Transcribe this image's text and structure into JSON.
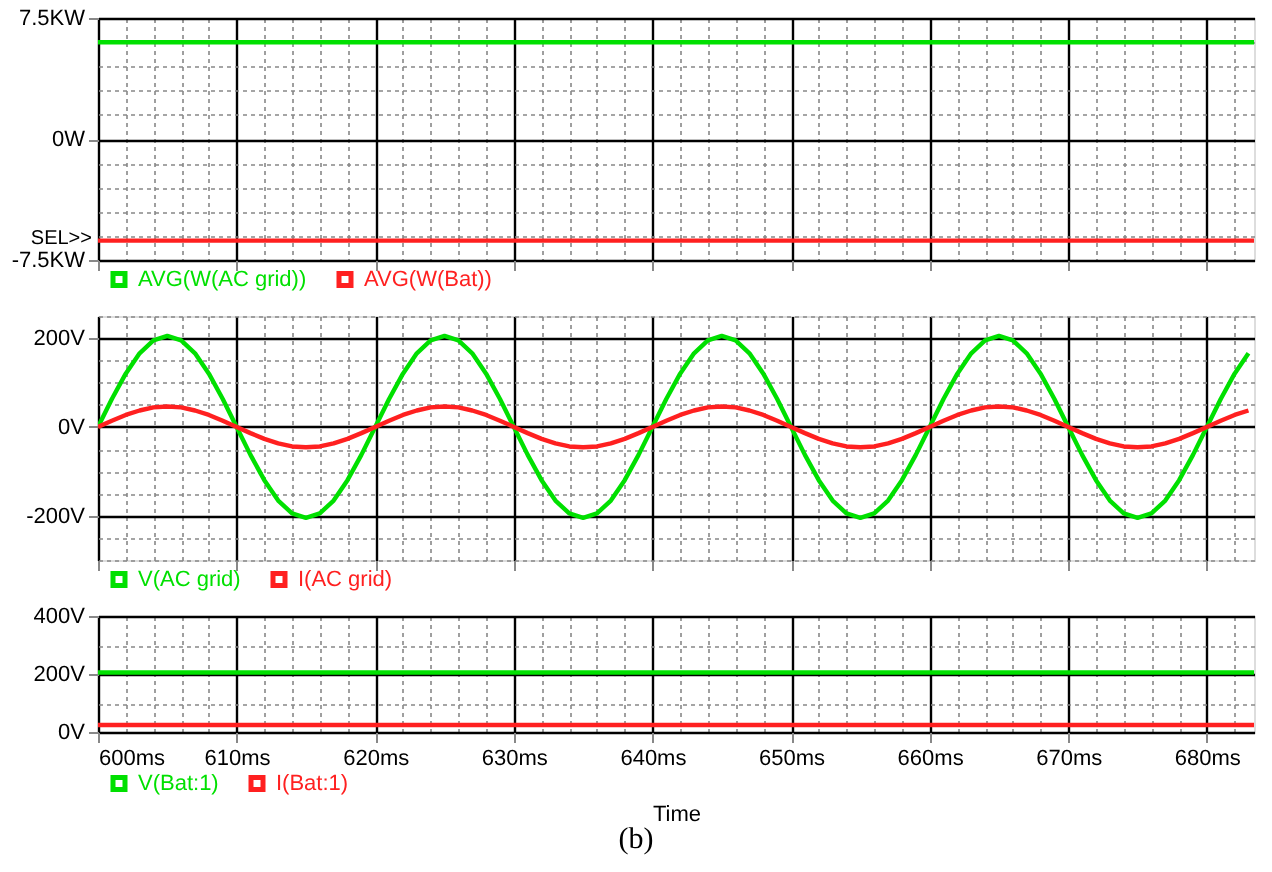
{
  "chart_data": [
    {
      "type": "line",
      "x": [
        600,
        683.4
      ],
      "xlim": [
        600,
        683.4
      ],
      "xticks": [
        600,
        {
          "value": 602,
          "label": null
        },
        {
          "value": 604,
          "label": null
        },
        {
          "value": 606,
          "label": null
        },
        {
          "value": 608,
          "label": null
        },
        610,
        {
          "value": 612,
          "label": null
        },
        {
          "value": 614,
          "label": null
        },
        {
          "value": 616,
          "label": null
        },
        {
          "value": 618,
          "label": null
        },
        620,
        {
          "value": 622,
          "label": null
        },
        {
          "value": 624,
          "label": null
        },
        {
          "value": 626,
          "label": null
        },
        {
          "value": 628,
          "label": null
        },
        630,
        {
          "value": 632,
          "label": null
        },
        {
          "value": 634,
          "label": null
        },
        {
          "value": 636,
          "label": null
        },
        {
          "value": 638,
          "label": null
        },
        640,
        {
          "value": 642,
          "label": null
        },
        {
          "value": 644,
          "label": null
        },
        {
          "value": 646,
          "label": null
        },
        {
          "value": 648,
          "label": null
        },
        650,
        {
          "value": 652,
          "label": null
        },
        {
          "value": 654,
          "label": null
        },
        {
          "value": 656,
          "label": null
        },
        {
          "value": 658,
          "label": null
        },
        660,
        {
          "value": 662,
          "label": null
        },
        {
          "value": 664,
          "label": null
        },
        {
          "value": 666,
          "label": null
        },
        {
          "value": 668,
          "label": null
        },
        670,
        {
          "value": 672,
          "label": null
        },
        {
          "value": 674,
          "label": null
        },
        {
          "value": 676,
          "label": null
        },
        {
          "value": 678,
          "label": null
        },
        680,
        {
          "value": 682,
          "label": null
        }
      ],
      "ylim": [
        -7.5,
        7.5
      ],
      "yticks": [
        {
          "value": -7.5,
          "label": "-7.5KW"
        },
        {
          "value": -6,
          "label": null
        },
        {
          "value": -4.5,
          "label": null
        },
        {
          "value": -3,
          "label": null
        },
        {
          "value": -1.5,
          "label": null
        },
        {
          "value": 0,
          "label": "0W"
        },
        {
          "value": 1.5,
          "label": null
        },
        {
          "value": 3,
          "label": null
        },
        {
          "value": 4.5,
          "label": null
        },
        {
          "value": 6,
          "label": null
        },
        {
          "value": 7.5,
          "label": "7.5KW"
        }
      ],
      "series": [
        {
          "name": "AVG(W(AC grid))",
          "color": "#00e000",
          "values": [
            6.0,
            6.0
          ]
        },
        {
          "name": "AVG(W(Bat))",
          "color": "#ff2020",
          "values": [
            -6.3,
            -6.3
          ]
        }
      ],
      "grid": true,
      "legend": "bottom",
      "tick_labels": "y",
      "annotations": [
        "SEL>>"
      ]
    },
    {
      "type": "line",
      "x": [
        600,
        601,
        602,
        603,
        604,
        605,
        606,
        607,
        608,
        609,
        610,
        611,
        612,
        613,
        614,
        615,
        616,
        617,
        618,
        619,
        620,
        621,
        622,
        623,
        624,
        625,
        626,
        627,
        628,
        629,
        630,
        631,
        632,
        633,
        634,
        635,
        636,
        637,
        638,
        639,
        640,
        641,
        642,
        643,
        644,
        645,
        646,
        647,
        648,
        649,
        650,
        651,
        652,
        653,
        654,
        655,
        656,
        657,
        658,
        659,
        660,
        661,
        662,
        663,
        664,
        665,
        666,
        667,
        668,
        669,
        670,
        671,
        672,
        673,
        674,
        675,
        676,
        677,
        678,
        679,
        680,
        681,
        682,
        683
      ],
      "xlim": [
        600,
        683.4
      ],
      "xticks": [
        600,
        {
          "value": 602,
          "label": null
        },
        {
          "value": 604,
          "label": null
        },
        {
          "value": 606,
          "label": null
        },
        {
          "value": 608,
          "label": null
        },
        610,
        {
          "value": 612,
          "label": null
        },
        {
          "value": 614,
          "label": null
        },
        {
          "value": 616,
          "label": null
        },
        {
          "value": 618,
          "label": null
        },
        620,
        {
          "value": 622,
          "label": null
        },
        {
          "value": 624,
          "label": null
        },
        {
          "value": 626,
          "label": null
        },
        {
          "value": 628,
          "label": null
        },
        630,
        {
          "value": 632,
          "label": null
        },
        {
          "value": 634,
          "label": null
        },
        {
          "value": 636,
          "label": null
        },
        {
          "value": 638,
          "label": null
        },
        640,
        {
          "value": 642,
          "label": null
        },
        {
          "value": 644,
          "label": null
        },
        {
          "value": 646,
          "label": null
        },
        {
          "value": 648,
          "label": null
        },
        650,
        {
          "value": 652,
          "label": null
        },
        {
          "value": 654,
          "label": null
        },
        {
          "value": 656,
          "label": null
        },
        {
          "value": 658,
          "label": null
        },
        660,
        {
          "value": 662,
          "label": null
        },
        {
          "value": 664,
          "label": null
        },
        {
          "value": 666,
          "label": null
        },
        {
          "value": 668,
          "label": null
        },
        670,
        {
          "value": 672,
          "label": null
        },
        {
          "value": 674,
          "label": null
        },
        {
          "value": 676,
          "label": null
        },
        {
          "value": 678,
          "label": null
        },
        680,
        {
          "value": 682,
          "label": null
        }
      ],
      "ylim": [
        -300,
        250
      ],
      "yticks": [
        {
          "value": -300,
          "label": null
        },
        {
          "value": -250,
          "label": null
        },
        {
          "value": -200,
          "label": "-200V"
        },
        {
          "value": -150,
          "label": null
        },
        {
          "value": -100,
          "label": null
        },
        {
          "value": -50,
          "label": null
        },
        {
          "value": 0,
          "label": "0V"
        },
        {
          "value": 50,
          "label": null
        },
        {
          "value": 100,
          "label": null
        },
        {
          "value": 150,
          "label": null
        },
        {
          "value": 200,
          "label": "200V"
        },
        {
          "value": 250,
          "label": null
        }
      ],
      "series": [
        {
          "name": "V(AC grid)",
          "color": "#00e000",
          "values": [
            0,
            63,
            120,
            166,
            195,
            205,
            195,
            166,
            120,
            63,
            0,
            -63,
            -120,
            -166,
            -195,
            -205,
            -195,
            -166,
            -120,
            -63,
            0,
            63,
            120,
            166,
            195,
            205,
            195,
            166,
            120,
            63,
            0,
            -63,
            -120,
            -166,
            -195,
            -205,
            -195,
            -166,
            -120,
            -63,
            0,
            63,
            120,
            166,
            195,
            205,
            195,
            166,
            120,
            63,
            0,
            -63,
            -120,
            -166,
            -195,
            -205,
            -195,
            -166,
            -120,
            -63,
            0,
            63,
            120,
            166,
            195,
            205,
            195,
            166,
            120,
            63,
            0,
            -63,
            -120,
            -166,
            -195,
            -205,
            -195,
            -166,
            -120,
            -63,
            0,
            63,
            120,
            166
          ]
        },
        {
          "name": "I(AC grid)",
          "color": "#ff2020",
          "values": [
            0,
            14,
            27,
            37,
            44,
            46,
            44,
            37,
            27,
            14,
            0,
            -14,
            -27,
            -37,
            -44,
            -46,
            -44,
            -37,
            -27,
            -14,
            0,
            14,
            27,
            37,
            44,
            46,
            44,
            37,
            27,
            14,
            0,
            -14,
            -27,
            -37,
            -44,
            -46,
            -44,
            -37,
            -27,
            -14,
            0,
            14,
            27,
            37,
            44,
            46,
            44,
            37,
            27,
            14,
            0,
            -14,
            -27,
            -37,
            -44,
            -46,
            -44,
            -37,
            -27,
            -14,
            0,
            14,
            27,
            37,
            44,
            46,
            44,
            37,
            27,
            14,
            0,
            -14,
            -27,
            -37,
            -44,
            -46,
            -44,
            -37,
            -27,
            -14,
            0,
            14,
            27,
            37
          ]
        }
      ],
      "grid": true,
      "legend": "bottom",
      "tick_labels": "y"
    },
    {
      "type": "line",
      "x": [
        600,
        683.4
      ],
      "xlim": [
        600,
        683.4
      ],
      "xlabel": "Time",
      "xticks": [
        {
          "value": 600,
          "label": "600ms"
        },
        {
          "value": 602,
          "label": null
        },
        {
          "value": 604,
          "label": null
        },
        {
          "value": 606,
          "label": null
        },
        {
          "value": 608,
          "label": null
        },
        {
          "value": 610,
          "label": "610ms"
        },
        {
          "value": 612,
          "label": null
        },
        {
          "value": 614,
          "label": null
        },
        {
          "value": 616,
          "label": null
        },
        {
          "value": 618,
          "label": null
        },
        {
          "value": 620,
          "label": "620ms"
        },
        {
          "value": 622,
          "label": null
        },
        {
          "value": 624,
          "label": null
        },
        {
          "value": 626,
          "label": null
        },
        {
          "value": 628,
          "label": null
        },
        {
          "value": 630,
          "label": "630ms"
        },
        {
          "value": 632,
          "label": null
        },
        {
          "value": 634,
          "label": null
        },
        {
          "value": 636,
          "label": null
        },
        {
          "value": 638,
          "label": null
        },
        {
          "value": 640,
          "label": "640ms"
        },
        {
          "value": 642,
          "label": null
        },
        {
          "value": 644,
          "label": null
        },
        {
          "value": 646,
          "label": null
        },
        {
          "value": 648,
          "label": null
        },
        {
          "value": 650,
          "label": "650ms"
        },
        {
          "value": 652,
          "label": null
        },
        {
          "value": 654,
          "label": null
        },
        {
          "value": 656,
          "label": null
        },
        {
          "value": 658,
          "label": null
        },
        {
          "value": 660,
          "label": "660ms"
        },
        {
          "value": 662,
          "label": null
        },
        {
          "value": 664,
          "label": null
        },
        {
          "value": 666,
          "label": null
        },
        {
          "value": 668,
          "label": null
        },
        {
          "value": 670,
          "label": "670ms"
        },
        {
          "value": 672,
          "label": null
        },
        {
          "value": 674,
          "label": null
        },
        {
          "value": 676,
          "label": null
        },
        {
          "value": 678,
          "label": null
        },
        {
          "value": 680,
          "label": "680ms"
        },
        {
          "value": 682,
          "label": null
        }
      ],
      "ylim": [
        0,
        400
      ],
      "yticks": [
        {
          "value": 0,
          "label": "0V"
        },
        {
          "value": 100,
          "label": null
        },
        {
          "value": 200,
          "label": "200V"
        },
        {
          "value": 300,
          "label": null
        },
        {
          "value": 400,
          "label": "400V"
        }
      ],
      "series": [
        {
          "name": "V(Bat:1)",
          "color": "#00e000",
          "values": [
            205,
            205
          ]
        },
        {
          "name": "I(Bat:1)",
          "color": "#ff2020",
          "values": [
            24,
            24
          ]
        }
      ],
      "grid": true,
      "legend": "bottom",
      "annotations": [
        "(b)"
      ]
    }
  ]
}
